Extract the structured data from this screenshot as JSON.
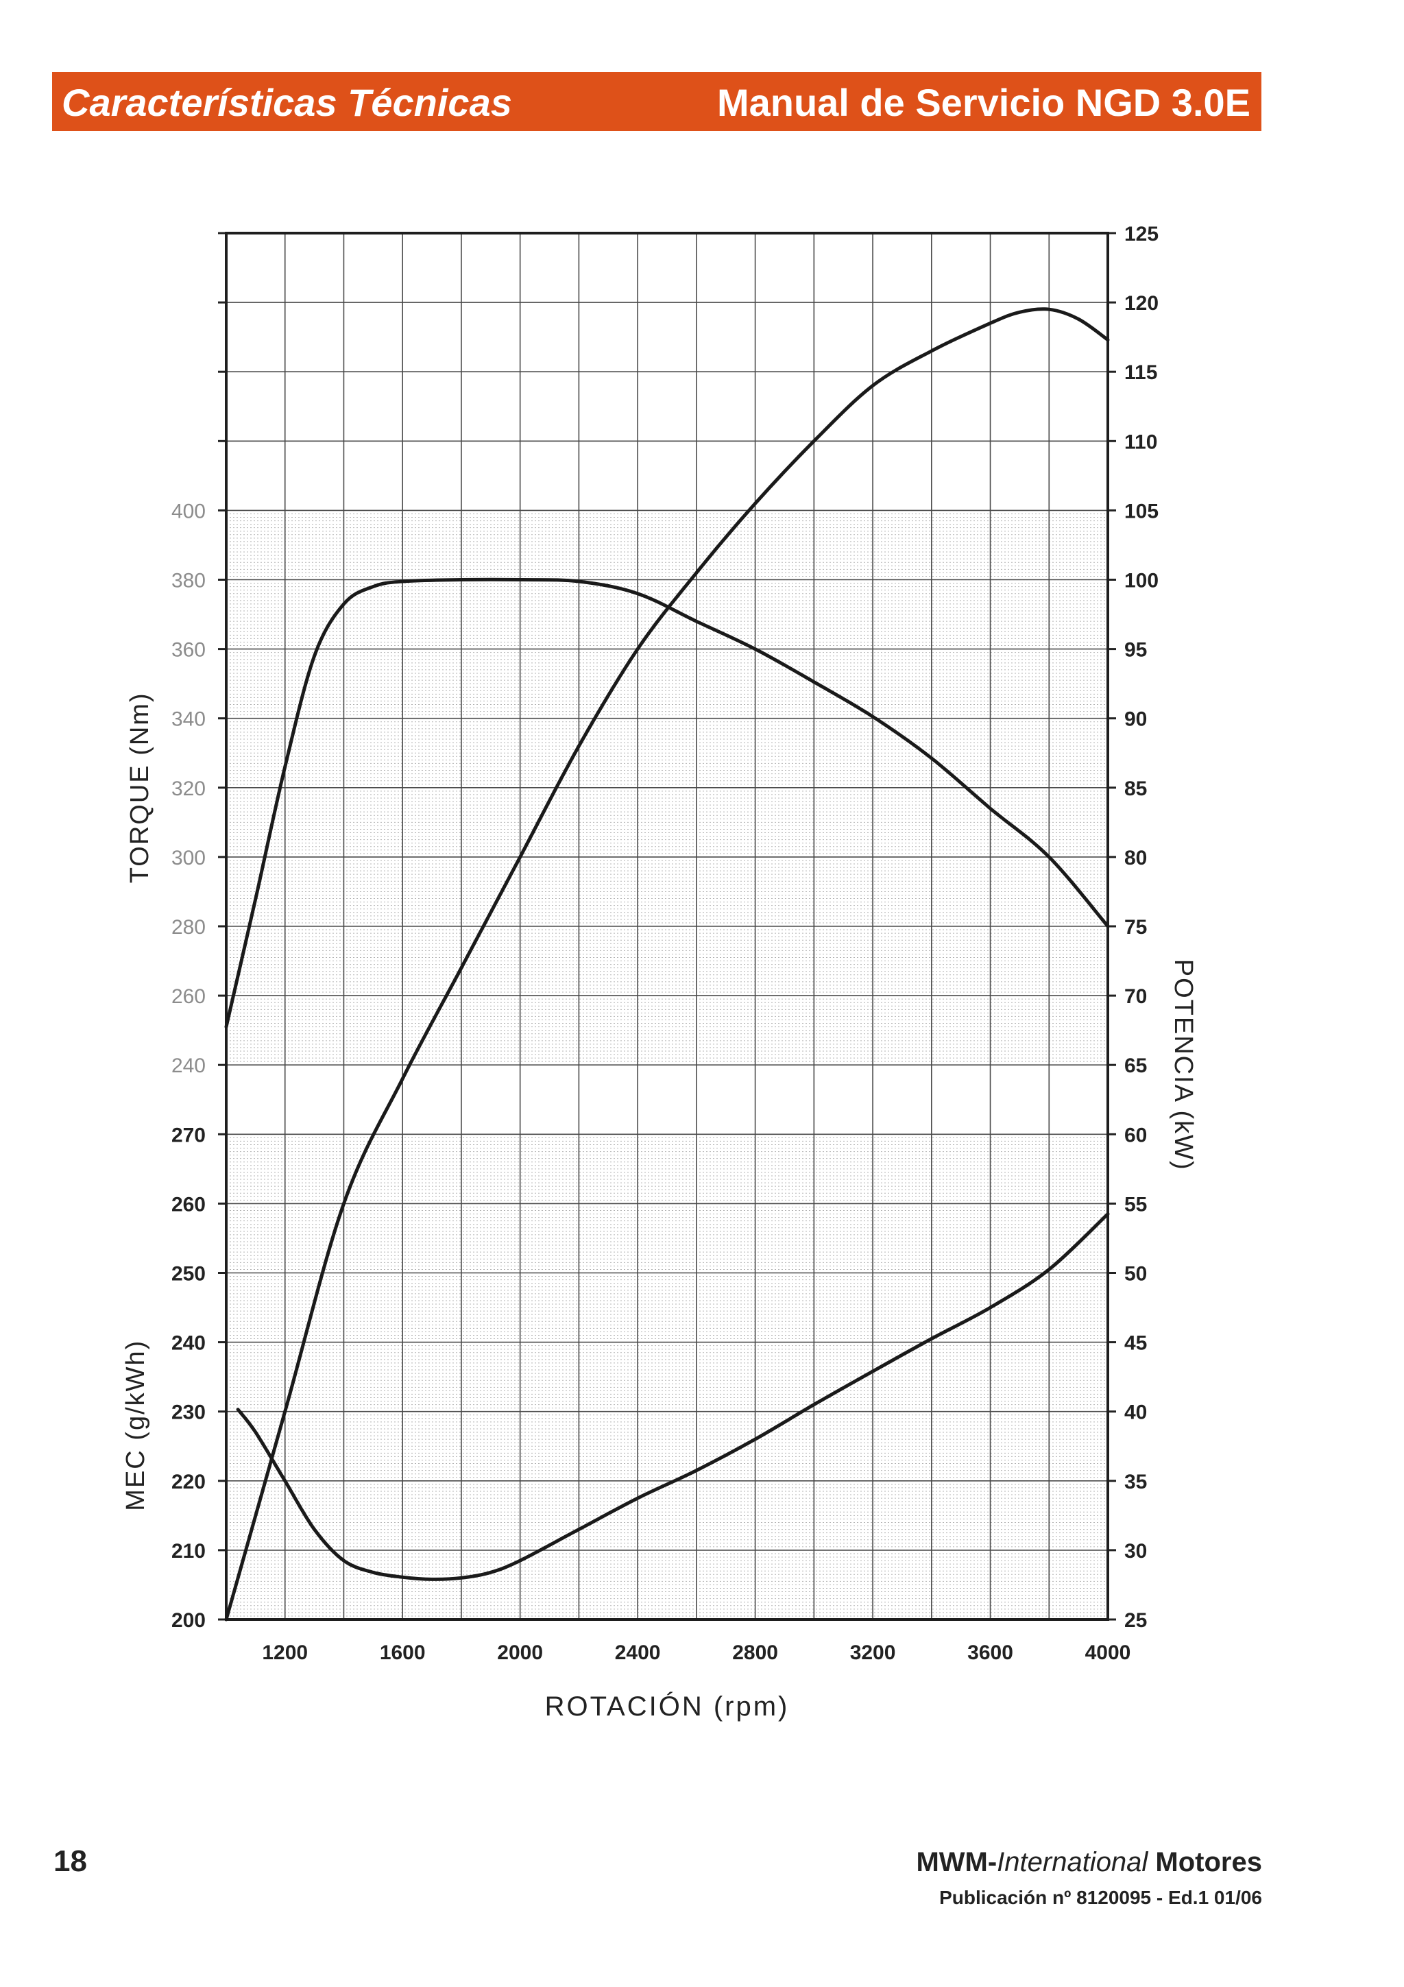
{
  "header": {
    "section_title": "Características Técnicas",
    "manual_title": "Manual de Servicio NGD 3.0E"
  },
  "footer": {
    "page_number": "18",
    "company_prefix": "MWM-",
    "company_italic": "International",
    "company_suffix": " Motores",
    "publication": "Publicación nº 8120095 - Ed.1 01/06"
  },
  "chart_data": {
    "type": "line",
    "title": "",
    "xlabel": "ROTACIÓN (rpm)",
    "xlim": [
      1000,
      4000
    ],
    "x_ticks": [
      1200,
      1600,
      2000,
      2400,
      2800,
      3200,
      3600,
      4000
    ],
    "grid": true,
    "axes": {
      "torque": {
        "label": "TORQUE (Nm)",
        "range": [
          240,
          400
        ],
        "ticks": [
          240,
          260,
          280,
          300,
          320,
          340,
          360,
          380,
          400
        ]
      },
      "mec": {
        "label": "MEC (g/kWh)",
        "range": [
          200,
          270
        ],
        "ticks": [
          200,
          210,
          220,
          230,
          240,
          250,
          260,
          270
        ]
      },
      "potencia": {
        "label": "POTENCIA (kW)",
        "range": [
          25,
          125
        ],
        "ticks": [
          25,
          30,
          35,
          40,
          45,
          50,
          55,
          60,
          65,
          70,
          75,
          80,
          85,
          90,
          95,
          100,
          105,
          110,
          115,
          120,
          125
        ]
      }
    },
    "series": [
      {
        "name": "Torque (Nm)",
        "axis": "torque",
        "x": [
          1000,
          1100,
          1200,
          1300,
          1400,
          1500,
          1600,
          1800,
          2000,
          2200,
          2400,
          2600,
          2800,
          3000,
          3200,
          3400,
          3600,
          3800,
          4000
        ],
        "values": [
          251,
          288,
          326,
          358,
          373,
          378,
          379.5,
          380,
          380,
          379.5,
          376,
          368,
          360,
          350.5,
          340.5,
          328.5,
          314,
          300,
          280
        ]
      },
      {
        "name": "Potencia (kW)",
        "axis": "potencia",
        "x": [
          1000,
          1200,
          1400,
          1600,
          1800,
          2000,
          2200,
          2400,
          2600,
          2800,
          3000,
          3200,
          3400,
          3600,
          3700,
          3800,
          3900,
          4000
        ],
        "values": [
          25,
          40,
          55,
          64,
          72,
          80,
          88,
          95,
          100.5,
          105.5,
          110,
          114,
          116.5,
          118.5,
          119.3,
          119.5,
          118.8,
          117.3
        ]
      },
      {
        "name": "MEC (g/kWh)",
        "axis": "mec",
        "x": [
          1040,
          1100,
          1200,
          1300,
          1400,
          1500,
          1600,
          1700,
          1800,
          1900,
          2000,
          2200,
          2400,
          2600,
          2800,
          3000,
          3200,
          3400,
          3600,
          3800,
          4000
        ],
        "values": [
          230.3,
          227,
          220,
          213,
          208.5,
          206.8,
          206.1,
          205.8,
          206,
          206.8,
          208.5,
          213,
          217.5,
          221.5,
          226,
          231,
          235.8,
          240.5,
          245,
          250.5,
          258.5
        ]
      }
    ]
  }
}
